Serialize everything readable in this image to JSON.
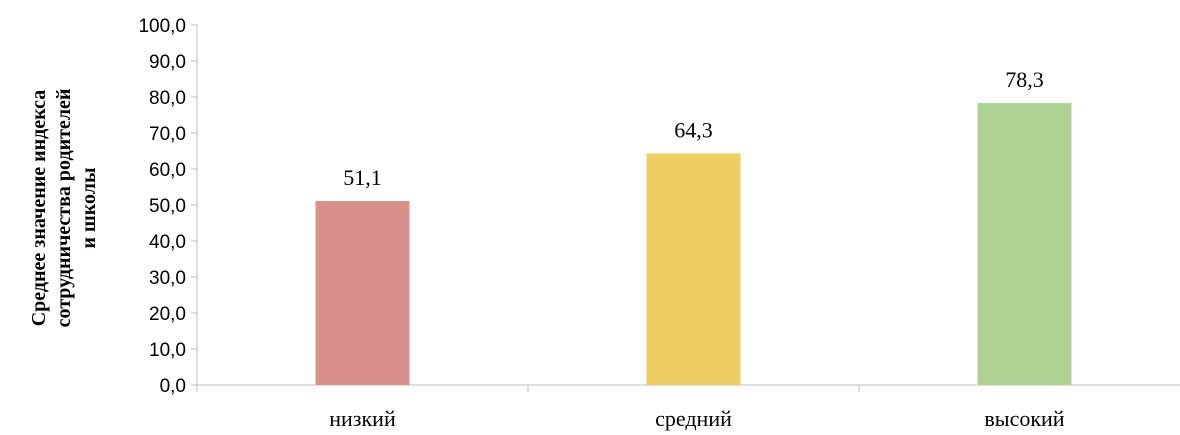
{
  "chart_data": {
    "type": "bar",
    "categories": [
      "низкий",
      "средний",
      "высокий"
    ],
    "values": [
      51.1,
      64.3,
      78.3
    ],
    "data_labels": [
      "51,1",
      "64,3",
      "78,3"
    ],
    "colors": [
      "#d9908b",
      "#eecd63",
      "#aed293"
    ],
    "title": "",
    "xlabel": "",
    "ylabel_lines": [
      "Среднее значение индекса",
      "сотрудничества родителей",
      "и школы"
    ],
    "ylim": [
      0,
      100
    ],
    "yticks": [
      "0,0",
      "10,0",
      "20,0",
      "30,0",
      "40,0",
      "50,0",
      "60,0",
      "70,0",
      "80,0",
      "90,0",
      "100,0"
    ],
    "grid": false,
    "legend": "none",
    "axis_color": "#bfbfbf"
  }
}
